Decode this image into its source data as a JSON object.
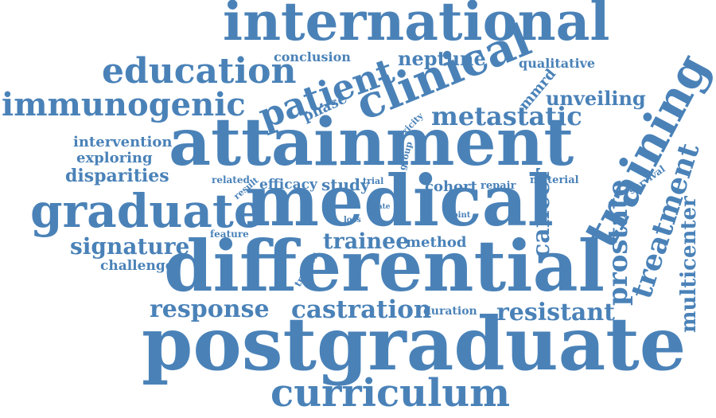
{
  "accent_color": "#4a82b8",
  "words": [
    {
      "text": "international",
      "weight": 10
    },
    {
      "text": "education",
      "weight": 6
    },
    {
      "text": "conclusion",
      "weight": 2
    },
    {
      "text": "neptune",
      "weight": 3
    },
    {
      "text": "qualitative",
      "weight": 2
    },
    {
      "text": "patient",
      "weight": 6
    },
    {
      "text": "clinical",
      "weight": 8
    },
    {
      "text": "immunogenic",
      "weight": 6
    },
    {
      "text": "phase",
      "weight": 2
    },
    {
      "text": "mmrd",
      "weight": 2
    },
    {
      "text": "unveiling",
      "weight": 3
    },
    {
      "text": "metastatic",
      "weight": 4
    },
    {
      "text": "toxicity",
      "weight": 1
    },
    {
      "text": "training",
      "weight": 8
    },
    {
      "text": "intervention",
      "weight": 2
    },
    {
      "text": "attainment",
      "weight": 12
    },
    {
      "text": "exploring",
      "weight": 2
    },
    {
      "text": "group",
      "weight": 1
    },
    {
      "text": "disparities",
      "weight": 3
    },
    {
      "text": "related",
      "weight": 1
    },
    {
      "text": "result",
      "weight": 1
    },
    {
      "text": "efficacy",
      "weight": 2
    },
    {
      "text": "study",
      "weight": 3
    },
    {
      "text": "trial",
      "weight": 1
    },
    {
      "text": "cohort",
      "weight": 2
    },
    {
      "text": "repair",
      "weight": 1
    },
    {
      "text": "material",
      "weight": 1
    },
    {
      "text": "survival",
      "weight": 1
    },
    {
      "text": "treatment",
      "weight": 5
    },
    {
      "text": "graduate",
      "weight": 9
    },
    {
      "text": "medical",
      "weight": 12
    },
    {
      "text": "rate",
      "weight": 1
    },
    {
      "text": "loss",
      "weight": 1
    },
    {
      "text": "point",
      "weight": 1
    },
    {
      "text": "cancer",
      "weight": 4
    },
    {
      "text": "prostate",
      "weight": 5
    },
    {
      "text": "feature",
      "weight": 1
    },
    {
      "text": "multicenter",
      "weight": 4
    },
    {
      "text": "signature",
      "weight": 4
    },
    {
      "text": "trainee",
      "weight": 4
    },
    {
      "text": "method",
      "weight": 2
    },
    {
      "text": "challenge",
      "weight": 2
    },
    {
      "text": "trainer",
      "weight": 1
    },
    {
      "text": "differential",
      "weight": 13
    },
    {
      "text": "response",
      "weight": 4
    },
    {
      "text": "castration",
      "weight": 4
    },
    {
      "text": "duration",
      "weight": 1
    },
    {
      "text": "resistant",
      "weight": 4
    },
    {
      "text": "postgraduate",
      "weight": 13
    },
    {
      "text": "curriculum",
      "weight": 8
    }
  ]
}
